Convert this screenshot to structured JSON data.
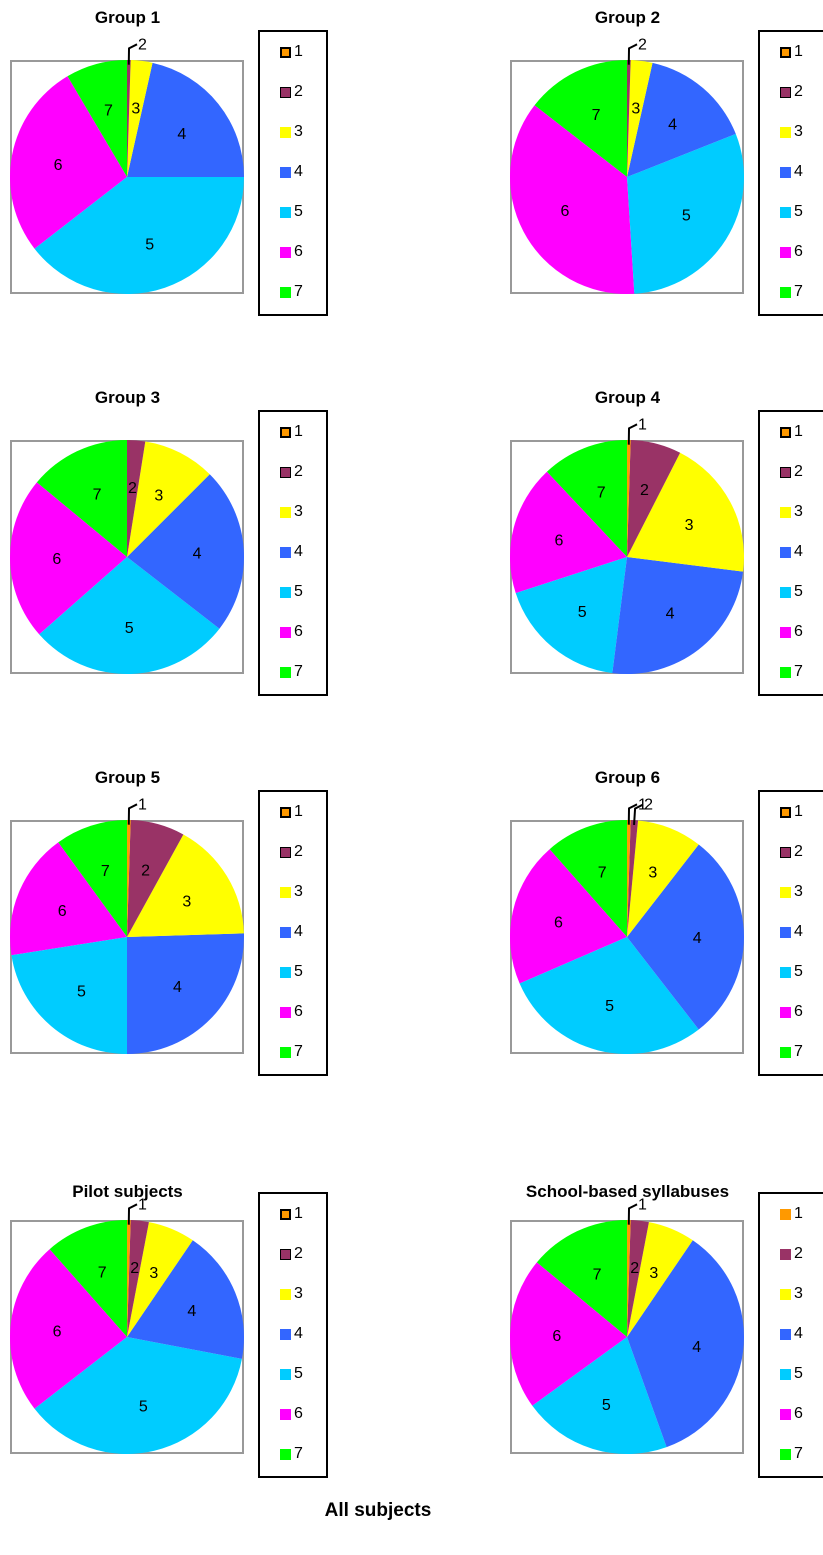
{
  "colors": {
    "1": "#ff9900",
    "2": "#993366",
    "3": "#ffff00",
    "4": "#3366ff",
    "5": "#00ccff",
    "6": "#ff00ff",
    "7": "#00ff00"
  },
  "footer_title": "All subjects",
  "chart_data": [
    {
      "type": "pie",
      "title": "Group 1",
      "labels": [
        "1",
        "2",
        "3",
        "4",
        "5",
        "6",
        "7"
      ],
      "values": [
        0,
        0.5,
        3,
        21.5,
        39.5,
        27,
        8.5
      ],
      "legend": "right",
      "legend_entries": [
        "1",
        "2",
        "3",
        "4",
        "5",
        "6",
        "7"
      ]
    },
    {
      "type": "pie",
      "title": "Group 2",
      "labels": [
        "1",
        "2",
        "3",
        "4",
        "5",
        "6",
        "7"
      ],
      "values": [
        0,
        0.5,
        3,
        15.5,
        30,
        36.5,
        14.5
      ],
      "legend": "right",
      "legend_entries": [
        "1",
        "2",
        "3",
        "4",
        "5",
        "6",
        "7"
      ]
    },
    {
      "type": "pie",
      "title": "Group 3",
      "labels": [
        "1",
        "2",
        "3",
        "4",
        "5",
        "6",
        "7"
      ],
      "values": [
        0,
        2.5,
        10,
        23,
        28,
        22.5,
        14
      ],
      "legend": "right",
      "legend_entries": [
        "1",
        "2",
        "3",
        "4",
        "5",
        "6",
        "7"
      ]
    },
    {
      "type": "pie",
      "title": "Group 4",
      "labels": [
        "1",
        "2",
        "3",
        "4",
        "5",
        "6",
        "7"
      ],
      "values": [
        0.5,
        7,
        19.5,
        25,
        18,
        18,
        12
      ],
      "legend": "right",
      "legend_entries": [
        "1",
        "2",
        "3",
        "4",
        "5",
        "6",
        "7"
      ]
    },
    {
      "type": "pie",
      "title": "Group 5",
      "labels": [
        "1",
        "2",
        "3",
        "4",
        "5",
        "6",
        "7"
      ],
      "values": [
        0.5,
        7.5,
        16.5,
        25.5,
        22.5,
        17.5,
        10
      ],
      "legend": "right",
      "legend_entries": [
        "1",
        "2",
        "3",
        "4",
        "5",
        "6",
        "7"
      ]
    },
    {
      "type": "pie",
      "title": "Group 6",
      "labels": [
        "1",
        "2",
        "3",
        "4",
        "5",
        "6",
        "7"
      ],
      "values": [
        0.5,
        1,
        9,
        29,
        29,
        20,
        11.5
      ],
      "legend": "right",
      "legend_entries": [
        "1",
        "2",
        "3",
        "4",
        "5",
        "6",
        "7"
      ]
    },
    {
      "type": "pie",
      "title": "Pilot subjects",
      "labels": [
        "1",
        "2",
        "3",
        "4",
        "5",
        "6",
        "7"
      ],
      "values": [
        0.5,
        2.5,
        6.5,
        18.5,
        36.5,
        24,
        11.5
      ],
      "legend": "right",
      "legend_entries": [
        "1",
        "2",
        "3",
        "4",
        "5",
        "6",
        "7"
      ]
    },
    {
      "type": "pie",
      "title": "School-based syllabuses",
      "labels": [
        "1",
        "2",
        "3",
        "4",
        "5",
        "6",
        "7"
      ],
      "values": [
        0.5,
        2.5,
        6.5,
        35,
        20.5,
        21,
        14
      ],
      "legend": "right",
      "legend_entries": [
        "1",
        "2",
        "3",
        "4",
        "5",
        "6",
        "7"
      ]
    }
  ]
}
